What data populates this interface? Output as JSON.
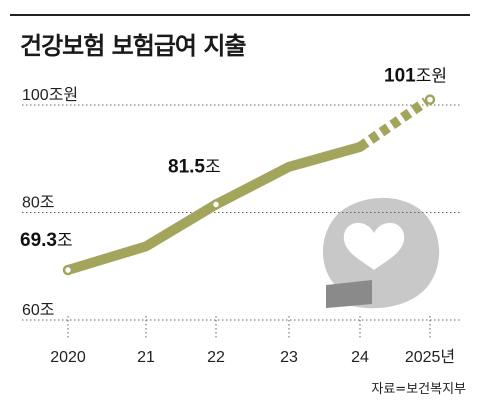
{
  "title": "건강보험 보험급여 지출",
  "source": "자료=보건복지부",
  "colors": {
    "line": "#a3a55c",
    "grid": "#666666",
    "watermark": "#cfcfcf"
  },
  "chart_data": {
    "type": "line",
    "title": "건강보험 보험급여 지출",
    "categories": [
      "2020",
      "21",
      "22",
      "23",
      "24",
      "2025년"
    ],
    "values": [
      69.3,
      73.7,
      81.5,
      88.5,
      92.2,
      101
    ],
    "projected_segment": {
      "from": "24",
      "to": "2025년",
      "style": "dashed"
    },
    "y_ticks": [
      {
        "value": 100,
        "label": "100조원"
      },
      {
        "value": 80,
        "label": "80조"
      },
      {
        "value": 60,
        "label": "60조"
      }
    ],
    "ylim": [
      60,
      100
    ],
    "grid": "horizontal dotted",
    "data_labels": [
      {
        "category": "2020",
        "label_num": "69.3",
        "label_unit": "조"
      },
      {
        "category": "22",
        "label_num": "81.5",
        "label_unit": "조"
      },
      {
        "category": "2025년",
        "label_num": "101",
        "label_unit": "조원"
      }
    ]
  }
}
